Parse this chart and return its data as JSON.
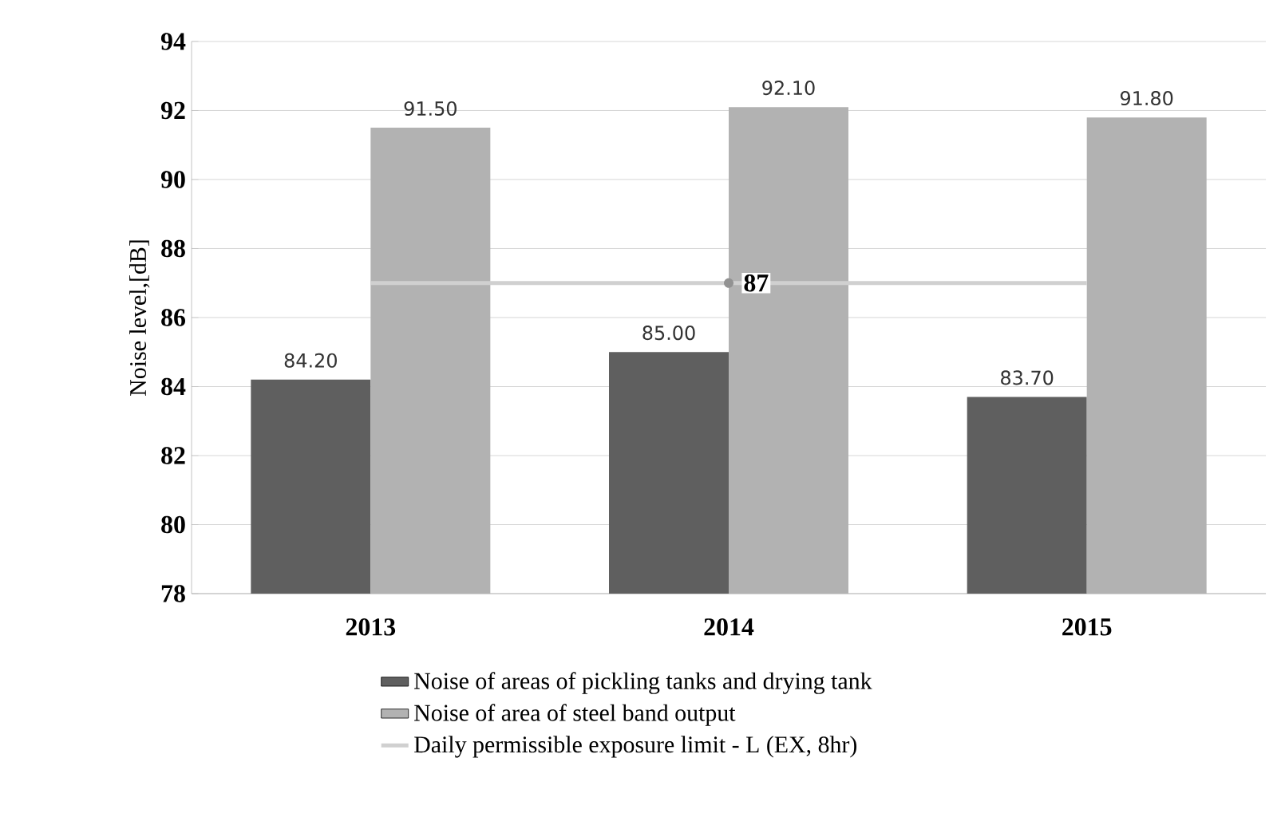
{
  "chart_data": {
    "type": "bar",
    "ylabel": "Noise level,[dB]",
    "categories": [
      "2013",
      "2014",
      "2015"
    ],
    "series": [
      {
        "name": "Noise of areas of pickling tanks and drying tank",
        "color": "#5f5f5f",
        "values": [
          84.2,
          85.0,
          83.7
        ],
        "value_labels": [
          "84.20",
          "85.00",
          "83.70"
        ]
      },
      {
        "name": "Noise of area of steel band output",
        "color": "#b2b2b2",
        "values": [
          91.5,
          92.1,
          91.8
        ],
        "value_labels": [
          "91.50",
          "92.10",
          "91.80"
        ]
      },
      {
        "name": "Daily permissible exposure limit - L (EX, 8hr)",
        "type": "line",
        "color": "#d0d0d0",
        "values": [
          87,
          87,
          87
        ],
        "value_labels": [
          null,
          "87",
          null
        ]
      }
    ],
    "ylim": [
      78,
      94
    ],
    "yticks": [
      78,
      80,
      82,
      84,
      86,
      88,
      90,
      92,
      94
    ],
    "grid": "y",
    "legend": "bottom"
  }
}
